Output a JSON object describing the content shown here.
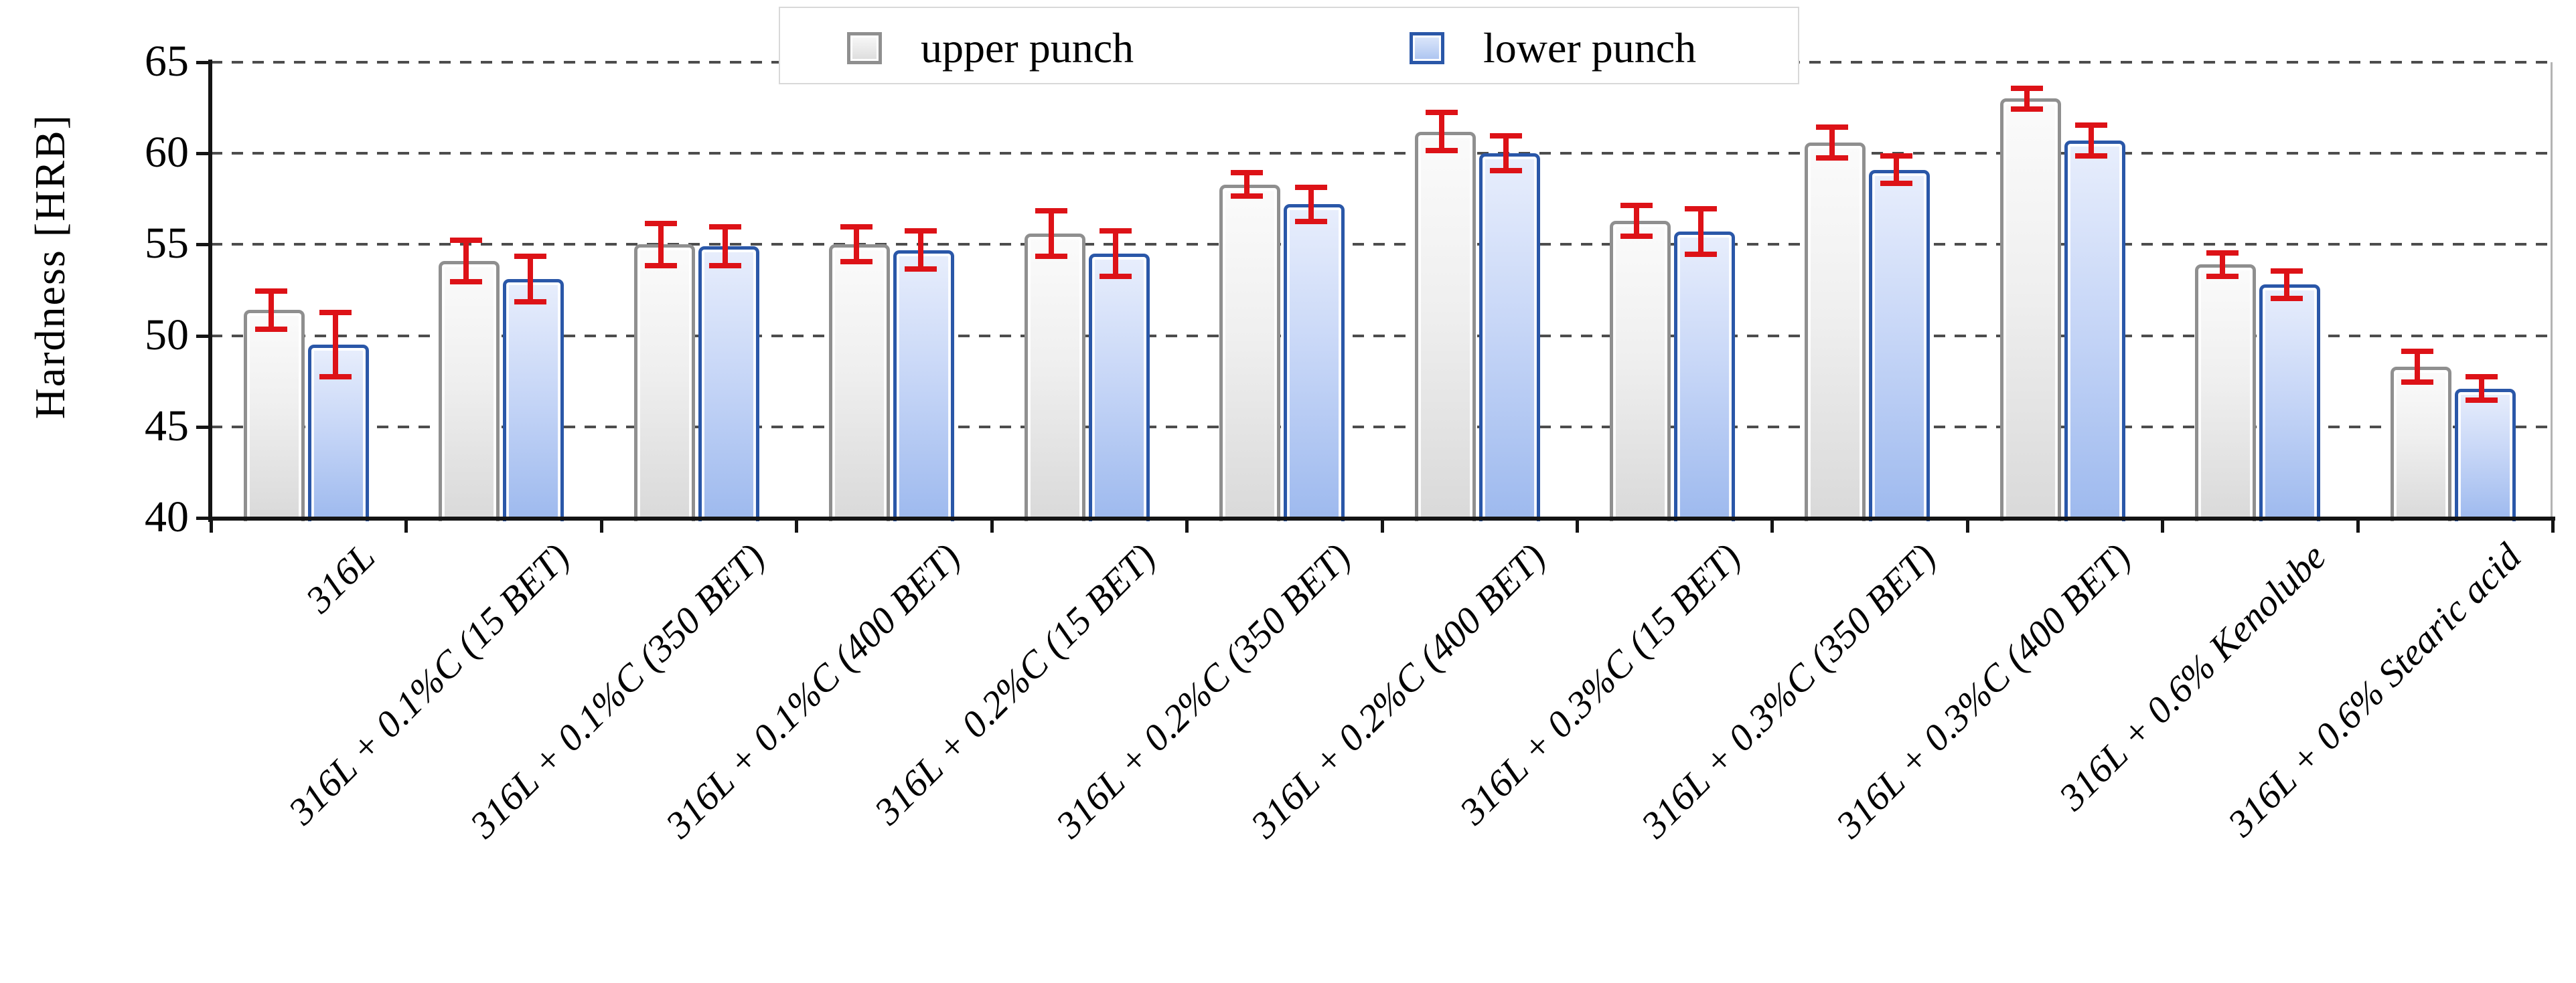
{
  "chart_data": {
    "type": "bar",
    "title": "",
    "xlabel": "",
    "ylabel": "Hardness [HRB]",
    "ylim": [
      40,
      65
    ],
    "ytick_step": 5,
    "y_ticks": [
      40,
      45,
      50,
      55,
      60,
      65
    ],
    "grid": "horizontal dashed",
    "legend_position": "top center",
    "error_bar_color": "#dd1217",
    "categories": [
      "316L",
      "316L + 0.1%C (15 BET)",
      "316L + 0.1%C (350 BET)",
      "316L + 0.1%C (400 BET)",
      "316L + 0.2%C (15 BET)",
      "316L + 0.2%C (350 BET)",
      "316L + 0.2%C (400 BET)",
      "316L + 0.3%C (15 BET)",
      "316L + 0.3%C (350 BET)",
      "316L + 0.3%C (400 BET)",
      "316L + 0.6% Kenolube",
      "316L + 0.6% Stearic acid"
    ],
    "series": [
      {
        "name": "upper punch",
        "border_color": "#8f8f8f",
        "fill_color": "#e8e8e8",
        "values": [
          51.4,
          54.1,
          55.0,
          55.0,
          55.6,
          58.3,
          61.2,
          56.3,
          60.6,
          63.0,
          53.9,
          48.3
        ],
        "errors": [
          1.2,
          1.3,
          1.3,
          1.1,
          1.4,
          0.8,
          1.2,
          1.0,
          1.0,
          0.7,
          0.8,
          1.0
        ]
      },
      {
        "name": "lower punch",
        "border_color": "#2a57a8",
        "fill_color": "#bcd0f5",
        "values": [
          49.5,
          53.1,
          54.9,
          54.7,
          54.5,
          57.2,
          60.0,
          55.7,
          59.1,
          60.7,
          52.8,
          47.1
        ],
        "errors": [
          1.9,
          1.4,
          1.2,
          1.2,
          1.4,
          1.1,
          1.1,
          1.4,
          0.9,
          1.0,
          0.9,
          0.8
        ]
      }
    ]
  }
}
